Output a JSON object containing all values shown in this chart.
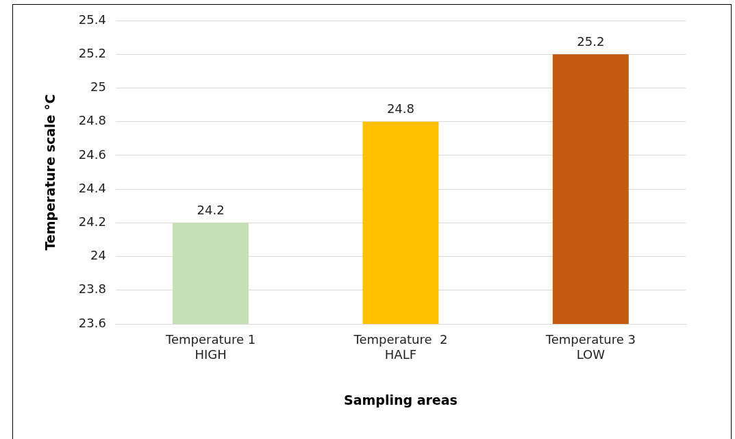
{
  "chart_data": {
    "type": "bar",
    "xlabel": "Sampling areas",
    "ylabel": "Temperature scale °C",
    "categories": [
      "Temperature 1\nHIGH",
      "Temperature  2\nHALF",
      "Temperature 3\nLOW"
    ],
    "values": [
      24.2,
      24.8,
      25.2
    ],
    "colors": [
      "#c5e0b4",
      "#ffc000",
      "#c55a11"
    ],
    "ylim": [
      23.6,
      25.4
    ],
    "yticks": [
      23.6,
      23.8,
      24,
      24.2,
      24.4,
      24.6,
      24.8,
      25,
      25.2,
      25.4
    ],
    "grid": "y",
    "data_labels": true,
    "legend": false
  }
}
